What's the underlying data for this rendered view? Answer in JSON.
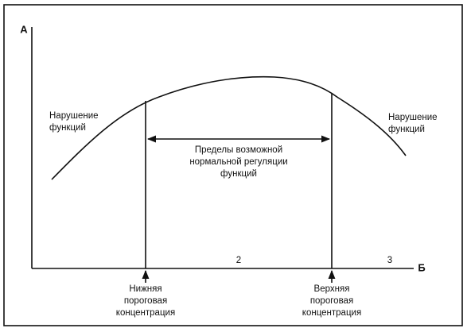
{
  "axes": {
    "y_label": "А",
    "x_label": "Б"
  },
  "left_label": {
    "lines": [
      "Нарушение",
      "функций"
    ]
  },
  "right_label": {
    "lines": [
      "Нарушение",
      "функций"
    ]
  },
  "center_label": {
    "lines": [
      "Пределы возможной",
      "нормальной регуляции",
      "функций"
    ]
  },
  "zones": [
    "2",
    "3"
  ],
  "thresholds": [
    {
      "lines": [
        "Нижняя",
        "пороговая",
        "концентрация"
      ]
    },
    {
      "lines": [
        "Верхняя",
        "пороговая",
        "концентрация"
      ]
    }
  ]
}
